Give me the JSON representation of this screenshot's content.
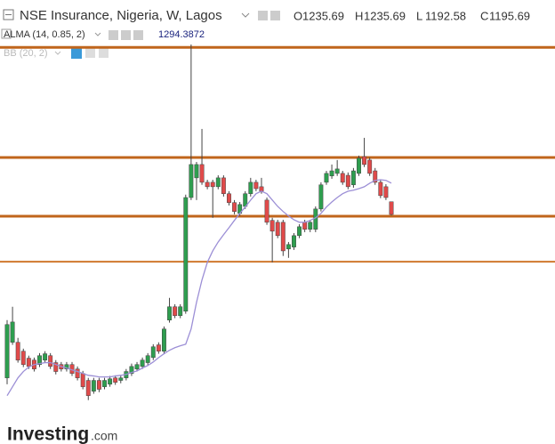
{
  "chart_data": {
    "type": "candlestick",
    "title": "NSE Insurance, Nigeria, W, Lagos",
    "ohlc_labels": [
      "O",
      "H",
      "L",
      "C"
    ],
    "open": [
      681,
      793,
      793,
      765,
      743,
      737,
      723,
      737,
      751,
      729,
      723,
      709,
      723,
      709,
      695,
      673,
      639,
      673,
      653,
      661,
      681,
      673,
      681,
      695,
      709,
      717,
      729,
      745,
      785,
      765,
      863,
      905,
      877,
      891,
      1249,
      1311,
      1353,
      1297,
      1297,
      1283,
      1311,
      1261,
      1233,
      1199,
      1221,
      1261,
      1297,
      1283,
      1241,
      1177,
      1171,
      1171,
      1087,
      1093,
      1129,
      1171,
      1149,
      1149,
      1213,
      1297,
      1317,
      1325,
      1325,
      1319,
      1289,
      1325,
      1378,
      1367,
      1333,
      1297,
      1283,
      1235.69
    ],
    "high": [
      863,
      905,
      807,
      773,
      751,
      745,
      759,
      765,
      759,
      737,
      731,
      731,
      731,
      717,
      703,
      681,
      681,
      681,
      681,
      687,
      689,
      689,
      709,
      726,
      731,
      745,
      759,
      787,
      793,
      843,
      933,
      913,
      913,
      1258,
      1731,
      1361,
      1465,
      1305,
      1305,
      1319,
      1319,
      1269,
      1241,
      1235,
      1269,
      1311,
      1305,
      1311,
      1249,
      1185,
      1179,
      1179,
      1109,
      1137,
      1165,
      1179,
      1179,
      1221,
      1297,
      1333,
      1353,
      1367,
      1333,
      1328,
      1342,
      1381,
      1437,
      1375,
      1342,
      1305,
      1291,
      1235.69
    ],
    "low": [
      661,
      785,
      729,
      715,
      709,
      701,
      715,
      729,
      709,
      692,
      701,
      701,
      687,
      673,
      645,
      611,
      631,
      636,
      645,
      653,
      659,
      664,
      673,
      687,
      701,
      709,
      720,
      737,
      757,
      757,
      855,
      869,
      869,
      883,
      1241,
      1241,
      1289,
      1275,
      1185,
      1275,
      1252,
      1224,
      1196,
      1191,
      1213,
      1252,
      1269,
      1261,
      1163,
      1045,
      1121,
      1065,
      1059,
      1084,
      1121,
      1140,
      1140,
      1140,
      1205,
      1289,
      1308,
      1317,
      1289,
      1275,
      1280,
      1317,
      1345,
      1317,
      1289,
      1247,
      1241,
      1192.58
    ],
    "close": [
      849,
      857,
      737,
      723,
      717,
      709,
      751,
      757,
      717,
      701,
      709,
      723,
      695,
      681,
      653,
      625,
      673,
      645,
      673,
      678,
      667,
      681,
      701,
      717,
      723,
      737,
      751,
      779,
      765,
      835,
      905,
      877,
      905,
      1249,
      1353,
      1353,
      1297,
      1283,
      1283,
      1311,
      1261,
      1233,
      1205,
      1227,
      1261,
      1297,
      1277,
      1269,
      1171,
      1143,
      1129,
      1081,
      1101,
      1129,
      1157,
      1149,
      1171,
      1213,
      1289,
      1325,
      1333,
      1339,
      1297,
      1283,
      1333,
      1373,
      1353,
      1325,
      1297,
      1255,
      1249,
      1195.69
    ],
    "up_color": "#2e9e4f",
    "down_color": "#e04a4a",
    "alma": {
      "name": "ALMA (14, 0.85, 2)",
      "color": "#9c8fd6",
      "values": [
        625,
        653,
        681,
        701,
        715,
        723,
        726,
        729,
        729,
        723,
        717,
        712,
        706,
        701,
        695,
        689,
        687,
        684,
        684,
        684,
        687,
        689,
        692,
        698,
        703,
        712,
        720,
        731,
        745,
        757,
        768,
        776,
        782,
        787,
        835,
        919,
        989,
        1045,
        1081,
        1109,
        1132,
        1154,
        1177,
        1199,
        1219,
        1241,
        1261,
        1269,
        1261,
        1241,
        1221,
        1205,
        1191,
        1179,
        1171,
        1171,
        1177,
        1185,
        1199,
        1219,
        1235,
        1249,
        1261,
        1269,
        1272,
        1277,
        1283,
        1294,
        1303,
        1305,
        1303,
        1294.3872
      ]
    },
    "bb_name": "BB (20, 2)",
    "levels": [
      {
        "value": 1722,
        "color": "#c0651b"
      },
      {
        "value": 1375,
        "color": "#c0651b"
      },
      {
        "value": 1190,
        "color": "#c0651b"
      },
      {
        "value": 1047,
        "color": "#d0782e"
      }
    ],
    "ylim": [
      540,
      1745
    ],
    "logo": "Investing",
    "logo_suffix": ".com"
  }
}
